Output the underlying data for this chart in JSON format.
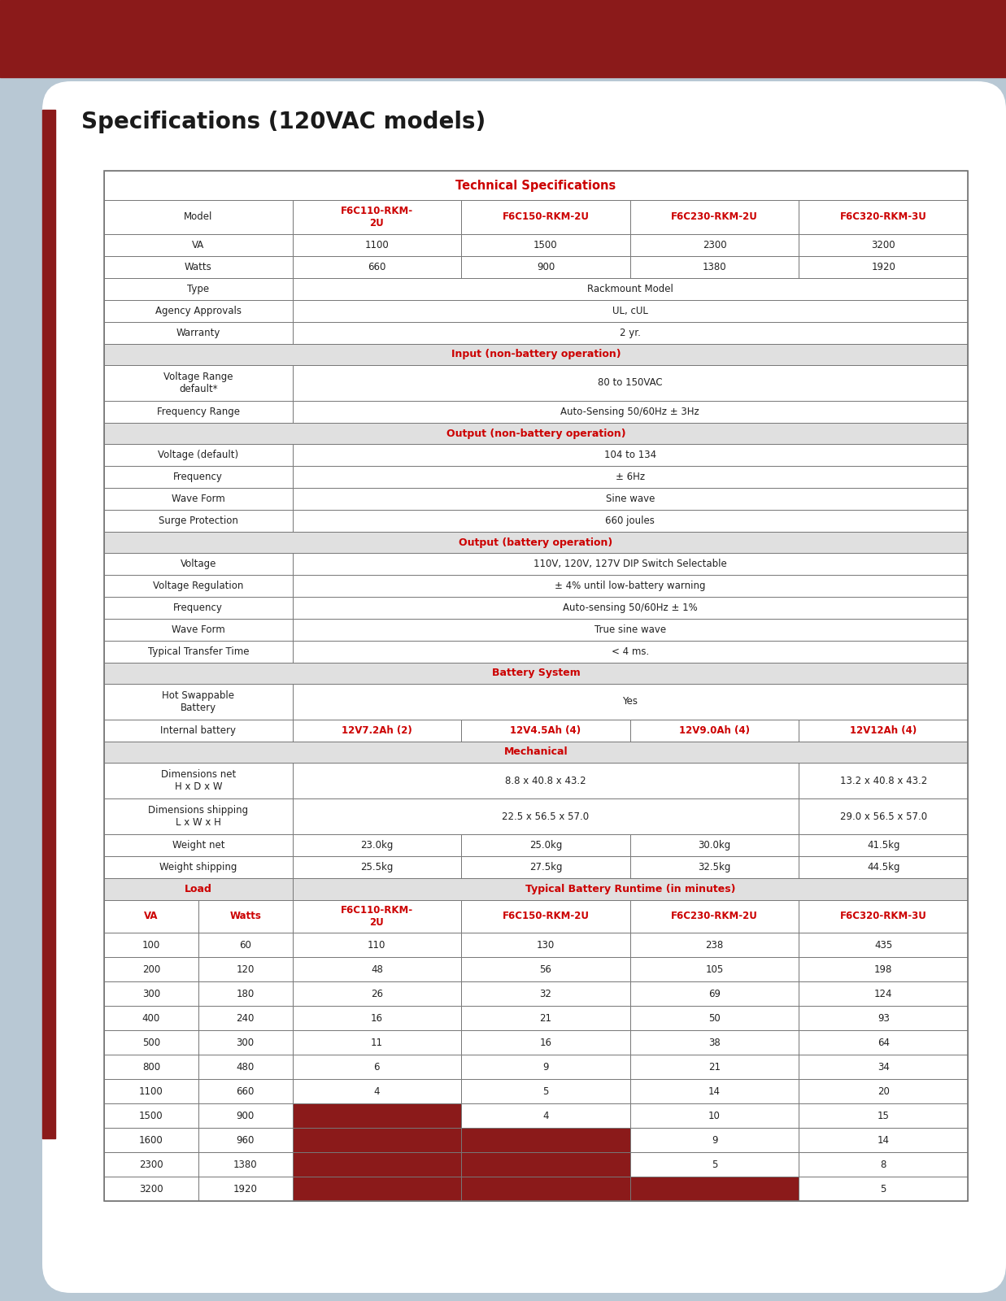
{
  "title": "Specifications (120VAC models)",
  "page_bg": "#b8c8d4",
  "content_bg": "#ffffff",
  "dark_red": "#8b1a1a",
  "red_header": "#cc0000",
  "section_bg": "#e0e0e0",
  "red_cell_bg": "#8b1a1a",
  "border_color": "#777777",
  "text_color": "#222222",
  "title_color": "#1a1a1a",
  "top_bar_color": "#8b1a1a",
  "left_bar_color": "#8b1a1a",
  "table_header": "Technical Specifications",
  "rows": [
    {
      "type": "model_header",
      "label": "Model",
      "cols": [
        "F6C110-RKM-\n2U",
        "F6C150-RKM-2U",
        "F6C230-RKM-2U",
        "F6C320-RKM-3U"
      ],
      "col_colors": [
        "#cc0000",
        "#cc0000",
        "#cc0000",
        "#cc0000"
      ]
    },
    {
      "type": "data4",
      "label": "VA",
      "cols": [
        "1100",
        "1500",
        "2300",
        "3200"
      ]
    },
    {
      "type": "data4",
      "label": "Watts",
      "cols": [
        "660",
        "900",
        "1380",
        "1920"
      ]
    },
    {
      "type": "data1",
      "label": "Type",
      "cols": [
        "Rackmount Model"
      ]
    },
    {
      "type": "data1",
      "label": "Agency Approvals",
      "cols": [
        "UL, cUL"
      ]
    },
    {
      "type": "data1",
      "label": "Warranty",
      "cols": [
        "2 yr."
      ]
    },
    {
      "type": "section",
      "label": "Input (non-battery operation)"
    },
    {
      "type": "data1_tall",
      "label": "Voltage Range\ndefault*",
      "cols": [
        "80 to 150VAC"
      ]
    },
    {
      "type": "data1",
      "label": "Frequency Range",
      "cols": [
        "Auto-Sensing 50/60Hz ± 3Hz"
      ]
    },
    {
      "type": "section",
      "label": "Output (non-battery operation)"
    },
    {
      "type": "data1",
      "label": "Voltage (default)",
      "cols": [
        "104 to 134"
      ]
    },
    {
      "type": "data1",
      "label": "Frequency",
      "cols": [
        "± 6Hz"
      ]
    },
    {
      "type": "data1",
      "label": "Wave Form",
      "cols": [
        "Sine wave"
      ]
    },
    {
      "type": "data1",
      "label": "Surge Protection",
      "cols": [
        "660 joules"
      ]
    },
    {
      "type": "section",
      "label": "Output (battery operation)"
    },
    {
      "type": "data1",
      "label": "Voltage",
      "cols": [
        "110V, 120V, 127V DIP Switch Selectable"
      ]
    },
    {
      "type": "data1",
      "label": "Voltage Regulation",
      "cols": [
        "± 4% until low-battery warning"
      ]
    },
    {
      "type": "data1",
      "label": "Frequency",
      "cols": [
        "Auto-sensing 50/60Hz ± 1%"
      ]
    },
    {
      "type": "data1",
      "label": "Wave Form",
      "cols": [
        "True sine wave"
      ]
    },
    {
      "type": "data1",
      "label": "Typical Transfer Time",
      "cols": [
        "< 4 ms."
      ]
    },
    {
      "type": "section",
      "label": "Battery System"
    },
    {
      "type": "data1_tall",
      "label": "Hot Swappable\nBattery",
      "cols": [
        "Yes"
      ]
    },
    {
      "type": "data4_red_label",
      "label": "Internal battery",
      "cols": [
        "12V7.2Ah (2)",
        "12V4.5Ah (4)",
        "12V9.0Ah (4)",
        "12V12Ah (4)"
      ],
      "col_colors": [
        "#cc0000",
        "#cc0000",
        "#cc0000",
        "#cc0000"
      ]
    },
    {
      "type": "section",
      "label": "Mechanical"
    },
    {
      "type": "data2_tall",
      "label": "Dimensions net\nH x D x W",
      "cols": [
        "8.8 x 40.8 x 43.2",
        "13.2 x 40.8 x 43.2"
      ],
      "spans": [
        3,
        1
      ]
    },
    {
      "type": "data2_tall",
      "label": "Dimensions shipping\nL x W x H",
      "cols": [
        "22.5 x 56.5 x 57.0",
        "29.0 x 56.5 x 57.0"
      ],
      "spans": [
        3,
        1
      ]
    },
    {
      "type": "data4",
      "label": "Weight net",
      "cols": [
        "23.0kg",
        "25.0kg",
        "30.0kg",
        "41.5kg"
      ]
    },
    {
      "type": "data4",
      "label": "Weight shipping",
      "cols": [
        "25.5kg",
        "27.5kg",
        "32.5kg",
        "44.5kg"
      ]
    },
    {
      "type": "load_header",
      "label": "Load",
      "runtime": "Typical Battery Runtime (in minutes)"
    },
    {
      "type": "runtime_header",
      "va": "VA",
      "watts": "Watts",
      "cols": [
        "F6C110-RKM-\n2U",
        "F6C150-RKM-2U",
        "F6C230-RKM-2U",
        "F6C320-RKM-3U"
      ]
    },
    {
      "type": "runtime_row",
      "va": "100",
      "watts": "60",
      "cols": [
        "110",
        "130",
        "238",
        "435"
      ],
      "red": [
        false,
        false,
        false,
        false
      ]
    },
    {
      "type": "runtime_row",
      "va": "200",
      "watts": "120",
      "cols": [
        "48",
        "56",
        "105",
        "198"
      ],
      "red": [
        false,
        false,
        false,
        false
      ]
    },
    {
      "type": "runtime_row",
      "va": "300",
      "watts": "180",
      "cols": [
        "26",
        "32",
        "69",
        "124"
      ],
      "red": [
        false,
        false,
        false,
        false
      ]
    },
    {
      "type": "runtime_row",
      "va": "400",
      "watts": "240",
      "cols": [
        "16",
        "21",
        "50",
        "93"
      ],
      "red": [
        false,
        false,
        false,
        false
      ]
    },
    {
      "type": "runtime_row",
      "va": "500",
      "watts": "300",
      "cols": [
        "11",
        "16",
        "38",
        "64"
      ],
      "red": [
        false,
        false,
        false,
        false
      ]
    },
    {
      "type": "runtime_row",
      "va": "800",
      "watts": "480",
      "cols": [
        "6",
        "9",
        "21",
        "34"
      ],
      "red": [
        false,
        false,
        false,
        false
      ]
    },
    {
      "type": "runtime_row",
      "va": "1100",
      "watts": "660",
      "cols": [
        "4",
        "5",
        "14",
        "20"
      ],
      "red": [
        false,
        false,
        false,
        false
      ]
    },
    {
      "type": "runtime_row",
      "va": "1500",
      "watts": "900",
      "cols": [
        "",
        "4",
        "10",
        "15"
      ],
      "red": [
        true,
        false,
        false,
        false
      ]
    },
    {
      "type": "runtime_row",
      "va": "1600",
      "watts": "960",
      "cols": [
        "",
        "",
        "9",
        "14"
      ],
      "red": [
        true,
        true,
        false,
        false
      ]
    },
    {
      "type": "runtime_row",
      "va": "2300",
      "watts": "1380",
      "cols": [
        "",
        "",
        "5",
        "8"
      ],
      "red": [
        true,
        true,
        false,
        false
      ]
    },
    {
      "type": "runtime_row",
      "va": "3200",
      "watts": "1920",
      "cols": [
        "",
        "",
        "",
        "5"
      ],
      "red": [
        true,
        true,
        true,
        false
      ]
    }
  ]
}
